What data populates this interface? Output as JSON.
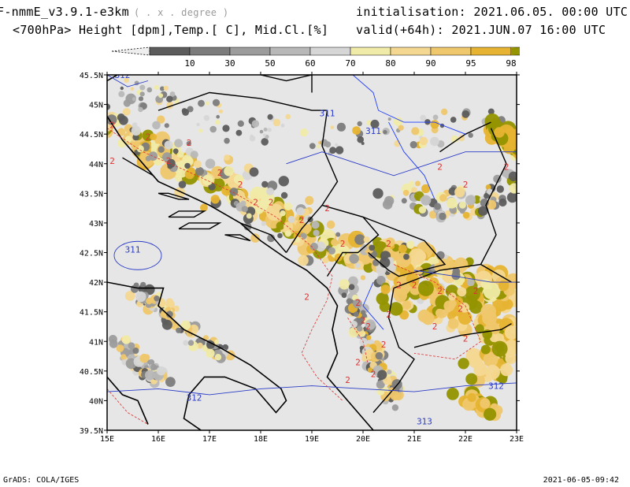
{
  "header": {
    "model": "F-nmmE_v3.9.1-e3km",
    "units_note": "( . x . degree )",
    "fields": "<700hPa> Height [dpm],Temp.[ C], Mid.Cl.[%]",
    "init_label": "initialisation:",
    "init_value": "2021.06.05.  00:00 UTC",
    "valid_label": "valid(+64h):",
    "valid_value": "2021.JUN.07  16:00 UTC"
  },
  "colorbar": {
    "labels": [
      "10",
      "30",
      "50",
      "60",
      "70",
      "80",
      "90",
      "95",
      "98"
    ],
    "colors": [
      "#5c5c5c",
      "#7c7c7c",
      "#9c9c9c",
      "#b8b8b8",
      "#d6d6d6",
      "#f0eba8",
      "#f4d891",
      "#efc76c",
      "#e6b432",
      "#939400"
    ],
    "lower_color": "#eeeeee"
  },
  "map": {
    "lat_labels": [
      "45.5N",
      "45N",
      "44.5N",
      "44N",
      "43.5N",
      "43N",
      "42.5N",
      "42N",
      "41.5N",
      "41N",
      "40.5N",
      "40N",
      "39.5N"
    ],
    "lon_labels": [
      "15E",
      "16E",
      "17E",
      "18E",
      "19E",
      "20E",
      "21E",
      "22E",
      "23E"
    ],
    "contour_labels": {
      "height": [
        "312",
        "311",
        "311",
        "311",
        "312",
        "312",
        "313"
      ],
      "temp": [
        "2",
        "2",
        "2",
        "2",
        "2",
        "2",
        "2",
        "2",
        "2",
        "2",
        "2",
        "2",
        "2",
        "2",
        "2",
        "2",
        "2",
        "2",
        "2",
        "2",
        "2",
        "2",
        "2",
        "2",
        "2",
        "2",
        "2",
        "2",
        "2",
        "2",
        "2",
        "2"
      ]
    },
    "colors": {
      "sea": "#e6e6e6",
      "coast": "#000000",
      "river": "#1f3dff",
      "height_contour": "#2b3cc8",
      "temp_contour": "#e03030"
    }
  },
  "footer": {
    "left": "GrADS: COLA/IGES",
    "right": "2021-06-05-09:42"
  }
}
